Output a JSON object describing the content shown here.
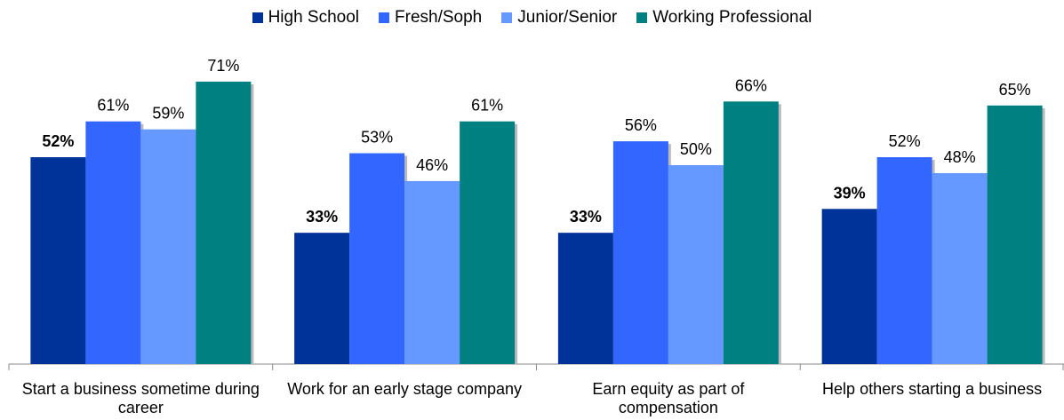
{
  "chart_data": {
    "type": "bar",
    "categories": [
      "Start a business sometime during career",
      "Work for an early stage company",
      "Earn equity as part of compensation",
      "Help others starting a business"
    ],
    "series": [
      {
        "name": "High School",
        "color": "#003399",
        "values": [
          52,
          33,
          33,
          39
        ],
        "value_labels": [
          "52%",
          "33%",
          "33%",
          "39%"
        ]
      },
      {
        "name": "Fresh/Soph",
        "color": "#3366ff",
        "values": [
          61,
          53,
          56,
          52
        ],
        "value_labels": [
          "61%",
          "53%",
          "56%",
          "52%"
        ]
      },
      {
        "name": "Junior/Senior",
        "color": "#6699ff",
        "values": [
          59,
          46,
          50,
          48
        ],
        "value_labels": [
          "59%",
          "46%",
          "50%",
          "48%"
        ]
      },
      {
        "name": "Working Professional",
        "color": "#008080",
        "values": [
          71,
          61,
          66,
          65
        ],
        "value_labels": [
          "71%",
          "61%",
          "66%",
          "65%"
        ]
      }
    ],
    "legend": "top"
  }
}
